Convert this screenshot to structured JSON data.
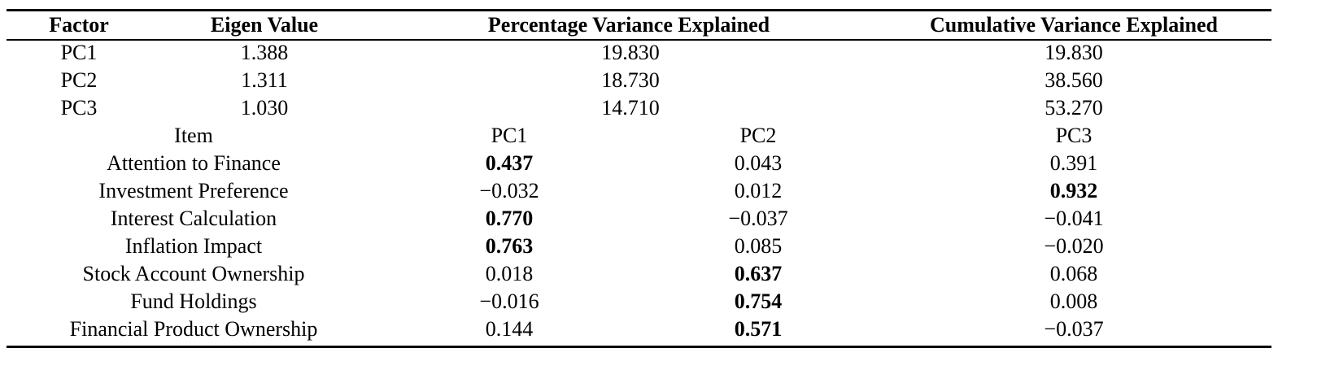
{
  "header": {
    "factor": "Factor",
    "eigen_value": "Eigen Value",
    "pct_variance": "Percentage Variance Explained",
    "cum_variance": "Cumulative Variance Explained"
  },
  "factors": [
    {
      "name": "PC1",
      "eigen": "1.388",
      "pct": "19.830",
      "cum": "19.830"
    },
    {
      "name": "PC2",
      "eigen": "1.311",
      "pct": "18.730",
      "cum": "38.560"
    },
    {
      "name": "PC3",
      "eigen": "1.030",
      "pct": "14.710",
      "cum": "53.270"
    }
  ],
  "loadings_header": {
    "item": "Item",
    "pc1": "PC1",
    "pc2": "PC2",
    "pc3": "PC3"
  },
  "loadings": [
    {
      "item": "Attention to Finance",
      "pc1": "0.437",
      "pc2": "0.043",
      "pc3": "0.391",
      "bold": "pc1"
    },
    {
      "item": "Investment Preference",
      "pc1": "−0.032",
      "pc2": "0.012",
      "pc3": "0.932",
      "bold": "pc3"
    },
    {
      "item": "Interest Calculation",
      "pc1": "0.770",
      "pc2": "−0.037",
      "pc3": "−0.041",
      "bold": "pc1"
    },
    {
      "item": "Inflation Impact",
      "pc1": "0.763",
      "pc2": "0.085",
      "pc3": "−0.020",
      "bold": "pc1"
    },
    {
      "item": "Stock Account Ownership",
      "pc1": "0.018",
      "pc2": "0.637",
      "pc3": "0.068",
      "bold": "pc2"
    },
    {
      "item": "Fund Holdings",
      "pc1": "−0.016",
      "pc2": "0.754",
      "pc3": "0.008",
      "bold": "pc2"
    },
    {
      "item": "Financial Product Ownership",
      "pc1": "0.144",
      "pc2": "0.571",
      "pc3": "−0.037",
      "bold": "pc2"
    }
  ]
}
